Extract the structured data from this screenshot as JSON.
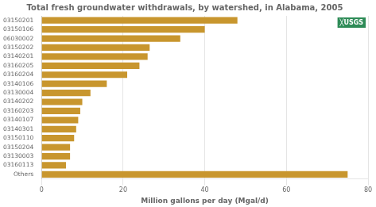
{
  "chart_data": {
    "type": "bar",
    "orientation": "horizontal",
    "title": "Total fresh groundwater withdrawals, by watershed, in Alabama, 2005",
    "xlabel": "Million gallons per day (Mgal/d)",
    "categories": [
      "Others",
      "03160113",
      "03130003",
      "03150204",
      "03150110",
      "03140301",
      "03140107",
      "03160203",
      "03140202",
      "03130004",
      "03140106",
      "03160204",
      "03160205",
      "03140201",
      "03150202",
      "06030002",
      "03150106",
      "03150201"
    ],
    "values": [
      75,
      6,
      7,
      7,
      8,
      8.5,
      9,
      9.5,
      10,
      12,
      16,
      21,
      24,
      26,
      26.5,
      34,
      40,
      48
    ],
    "color": "#C8962E",
    "xlim": [
      0,
      80
    ],
    "xticks": [
      0,
      20,
      40,
      60,
      80
    ],
    "grid": true,
    "annotations": [
      "╳USGS"
    ]
  }
}
